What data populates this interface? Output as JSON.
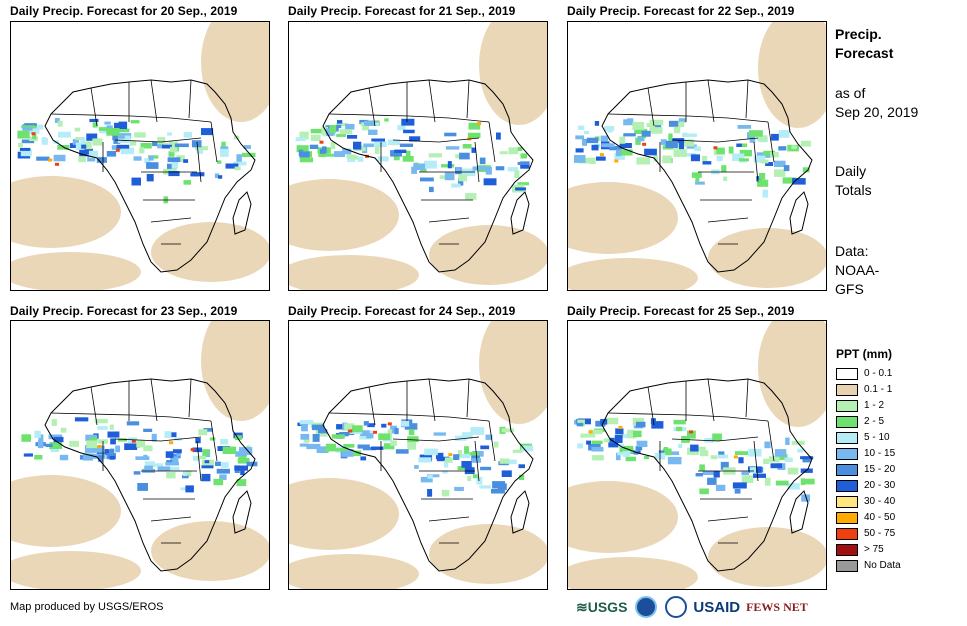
{
  "panels": [
    {
      "title": "Daily Precip. Forecast for 20 Sep., 2019"
    },
    {
      "title": "Daily Precip. Forecast for 21 Sep., 2019"
    },
    {
      "title": "Daily Precip. Forecast for 22 Sep., 2019"
    },
    {
      "title": "Daily Precip. Forecast for 23 Sep., 2019"
    },
    {
      "title": "Daily Precip. Forecast for 24 Sep., 2019"
    },
    {
      "title": "Daily Precip. Forecast for 25 Sep., 2019"
    }
  ],
  "sidebar": {
    "title_line1": "Precip.",
    "title_line2": "Forecast",
    "asof_line1": "as of",
    "asof_line2": "Sep 20, 2019",
    "totals_line1": "Daily",
    "totals_line2": "Totals",
    "data_line1": "Data:",
    "data_line2": "NOAA-",
    "data_line3": "GFS"
  },
  "legend": {
    "title": "PPT (mm)",
    "items": [
      {
        "label": "0 - 0.1",
        "color": "#ffffff"
      },
      {
        "label": "0.1 - 1",
        "color": "#e8d3b0"
      },
      {
        "label": "1 - 2",
        "color": "#b4f0b4"
      },
      {
        "label": "2 - 5",
        "color": "#6ee26e"
      },
      {
        "label": "5 - 10",
        "color": "#b4ecf8"
      },
      {
        "label": "10 - 15",
        "color": "#78b8f0"
      },
      {
        "label": "15 - 20",
        "color": "#4a8ee0"
      },
      {
        "label": "20 - 30",
        "color": "#1e5ed8"
      },
      {
        "label": "30 - 40",
        "color": "#ffe680"
      },
      {
        "label": "40 - 50",
        "color": "#ffaa00"
      },
      {
        "label": "50 - 75",
        "color": "#f04010"
      },
      {
        "label": "> 75",
        "color": "#a01010"
      },
      {
        "label": "No Data",
        "color": "#999999"
      }
    ]
  },
  "footer": {
    "credit": "Map produced by USGS/EROS",
    "logo_usgs": "≋USGS",
    "logo_usaid": "USAID",
    "logo_fews": "FEWS NET"
  }
}
